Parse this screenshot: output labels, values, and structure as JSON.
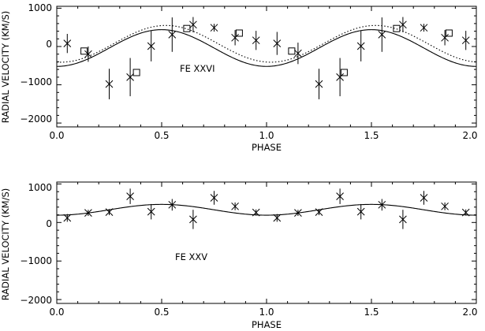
{
  "chart_data": [
    {
      "type": "scatter",
      "annotation": "FE XXVI",
      "xlabel": "PHASE",
      "ylabel": "RADIAL VELOCITY (KM/S)",
      "xlim": [
        0.0,
        2.0
      ],
      "ylim": [
        -2100,
        1050
      ],
      "xticks": [
        "0.0",
        "0.5",
        "1.0",
        "1.5",
        "2.0"
      ],
      "yticks": [
        "1000",
        "0",
        "−1000",
        "−2000"
      ],
      "series": [
        {
          "marker": "x",
          "points": [
            {
              "x": 0.05,
              "y": 80,
              "err": 250
            },
            {
              "x": 0.15,
              "y": -200,
              "err": 200
            },
            {
              "x": 0.25,
              "y": -980,
              "err": 400
            },
            {
              "x": 0.35,
              "y": -800,
              "err": 500
            },
            {
              "x": 0.45,
              "y": 10,
              "err": 400
            },
            {
              "x": 0.55,
              "y": 310,
              "err": 450
            },
            {
              "x": 0.65,
              "y": 570,
              "err": 200
            },
            {
              "x": 0.75,
              "y": 490,
              "err": 100
            },
            {
              "x": 0.85,
              "y": 230,
              "err": 200
            },
            {
              "x": 0.95,
              "y": 160,
              "err": 250
            },
            {
              "x": 1.05,
              "y": 80,
              "err": 300
            },
            {
              "x": 1.15,
              "y": -180,
              "err": 280
            },
            {
              "x": 1.25,
              "y": -980,
              "err": 400
            },
            {
              "x": 1.35,
              "y": -800,
              "err": 500
            },
            {
              "x": 1.45,
              "y": 10,
              "err": 400
            },
            {
              "x": 1.55,
              "y": 310,
              "err": 450
            },
            {
              "x": 1.65,
              "y": 570,
              "err": 200
            },
            {
              "x": 1.75,
              "y": 490,
              "err": 100
            },
            {
              "x": 1.85,
              "y": 230,
              "err": 200
            },
            {
              "x": 1.95,
              "y": 160,
              "err": 250
            }
          ]
        },
        {
          "marker": "square",
          "points": [
            {
              "x": 0.13,
              "y": -120
            },
            {
              "x": 0.38,
              "y": -680
            },
            {
              "x": 0.62,
              "y": 470
            },
            {
              "x": 0.87,
              "y": 350
            },
            {
              "x": 1.12,
              "y": -120
            },
            {
              "x": 1.37,
              "y": -680
            },
            {
              "x": 1.62,
              "y": 470
            },
            {
              "x": 1.87,
              "y": 350
            }
          ]
        }
      ],
      "curves": [
        {
          "style": "solid",
          "gamma": -40,
          "amplitude": 480,
          "phase_offset": 0.0
        },
        {
          "style": "dotted",
          "gamma": 70,
          "amplitude": 480,
          "phase_offset": -0.02
        }
      ]
    },
    {
      "type": "scatter",
      "annotation": "FE XXV",
      "xlabel": "PHASE",
      "ylabel": "RADIAL VELOCITY (KM/S)",
      "xlim": [
        0.0,
        2.0
      ],
      "ylim": [
        -2100,
        1050
      ],
      "xticks": [
        "0.0",
        "0.5",
        "1.0",
        "1.5",
        "2.0"
      ],
      "yticks": [
        "1000",
        "0",
        "−1000",
        "−2000"
      ],
      "series": [
        {
          "marker": "x",
          "points": [
            {
              "x": 0.05,
              "y": 120,
              "err": 100
            },
            {
              "x": 0.15,
              "y": 250,
              "err": 80
            },
            {
              "x": 0.25,
              "y": 270,
              "err": 80
            },
            {
              "x": 0.35,
              "y": 680,
              "err": 200
            },
            {
              "x": 0.45,
              "y": 280,
              "err": 200
            },
            {
              "x": 0.55,
              "y": 460,
              "err": 150
            },
            {
              "x": 0.65,
              "y": 80,
              "err": 250
            },
            {
              "x": 0.75,
              "y": 640,
              "err": 180
            },
            {
              "x": 0.85,
              "y": 420,
              "err": 100
            },
            {
              "x": 0.95,
              "y": 260,
              "err": 80
            },
            {
              "x": 1.05,
              "y": 120,
              "err": 100
            },
            {
              "x": 1.15,
              "y": 250,
              "err": 80
            },
            {
              "x": 1.25,
              "y": 270,
              "err": 80
            },
            {
              "x": 1.35,
              "y": 680,
              "err": 200
            },
            {
              "x": 1.45,
              "y": 280,
              "err": 200
            },
            {
              "x": 1.55,
              "y": 460,
              "err": 150
            },
            {
              "x": 1.65,
              "y": 80,
              "err": 250
            },
            {
              "x": 1.75,
              "y": 640,
              "err": 180
            },
            {
              "x": 1.85,
              "y": 420,
              "err": 100
            },
            {
              "x": 1.95,
              "y": 260,
              "err": 80
            }
          ]
        }
      ],
      "curves": [
        {
          "style": "solid",
          "gamma": 330,
          "amplitude": 140,
          "phase_offset": 0.0
        }
      ]
    }
  ]
}
